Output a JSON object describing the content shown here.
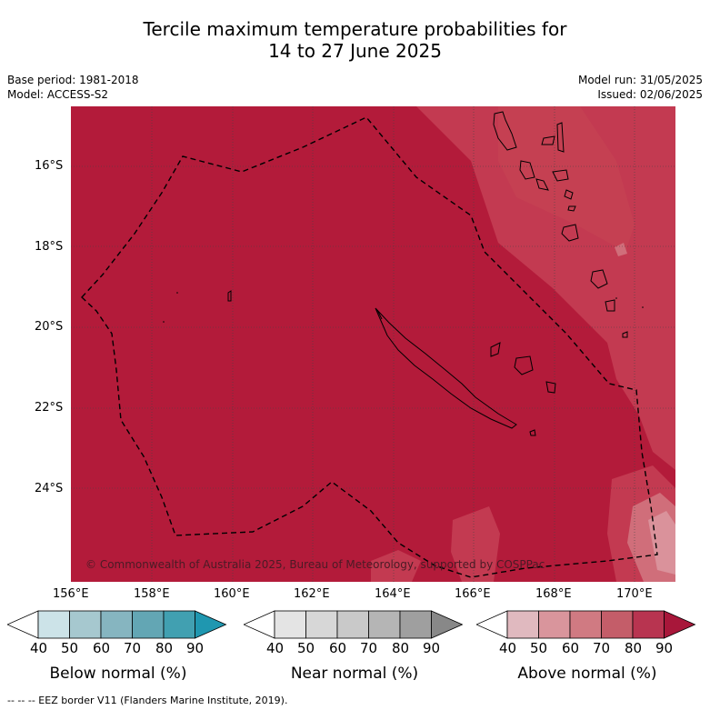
{
  "title": {
    "line1": "Tercile maximum temperature probabilities for",
    "line2": "14 to 27 June 2025"
  },
  "info": {
    "base_period": "Base period: 1981-2018",
    "model": "Model: ACCESS-S2",
    "model_run": "Model run: 31/05/2025",
    "issued": "Issued: 02/06/2025"
  },
  "map": {
    "lat_ticks": [
      "16°S",
      "18°S",
      "20°S",
      "22°S",
      "24°S"
    ],
    "lon_ticks": [
      "156°E",
      "158°E",
      "160°E",
      "162°E",
      "164°E",
      "166°E",
      "168°E",
      "170°E"
    ],
    "credit": "© Commonwealth of Australia 2025, Bureau of Meteorology, supported by COSPPac",
    "colors": {
      "above_80": "#b31b3a",
      "above_70": "#c33a51",
      "above_60": "#d06e7a",
      "above_50": "#da929b",
      "coast": "#000000",
      "grid": "#444444"
    }
  },
  "colorbars": {
    "ticks": [
      "40",
      "50",
      "60",
      "70",
      "80",
      "90"
    ],
    "below": {
      "label": "Below normal (%)",
      "colors": [
        "#ffffff",
        "#cce3e8",
        "#a6c8cf",
        "#86b5c0",
        "#63a6b4",
        "#41a0b1",
        "#1f97b0"
      ]
    },
    "near": {
      "label": "Near normal (%)",
      "colors": [
        "#ffffff",
        "#e4e4e4",
        "#d7d7d7",
        "#c9c9c9",
        "#b5b5b5",
        "#9f9f9f",
        "#888888"
      ]
    },
    "above": {
      "label": "Above normal (%)",
      "colors": [
        "#ffffff",
        "#e0b9bf",
        "#d9959c",
        "#d07a82",
        "#c45d69",
        "#b83450",
        "#a8173a"
      ]
    }
  },
  "footer": "-- -- -- EEZ border V11 (Flanders Marine Institute, 2019)."
}
